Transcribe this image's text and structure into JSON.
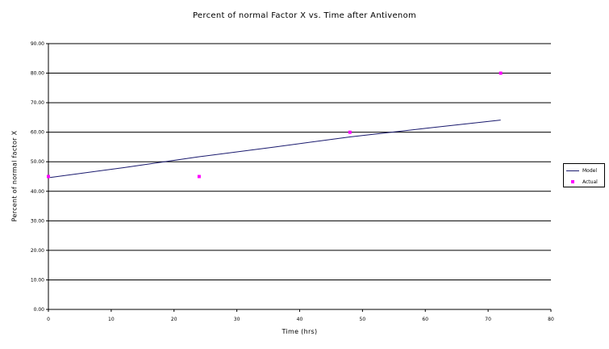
{
  "chart_data": {
    "type": "scatter",
    "title": "Percent of normal Factor X vs. Time after Antivenom",
    "xlabel": "Time (hrs)",
    "ylabel": "Percent of normal factor X",
    "xlim": [
      0,
      80
    ],
    "ylim": [
      0,
      90
    ],
    "x_ticks": [
      "0",
      "10",
      "20",
      "30",
      "40",
      "50",
      "60",
      "70",
      "80"
    ],
    "y_ticks": [
      "0.00",
      "10.00",
      "20.00",
      "30.00",
      "40.00",
      "50.00",
      "60.00",
      "70.00",
      "80.00",
      "90.00"
    ],
    "grid": "horizontal",
    "legend_placement": "right",
    "series": [
      {
        "name": "Model",
        "kind": "line",
        "color": "#1a1a6e",
        "x": [
          0,
          12,
          24,
          36,
          48,
          60,
          72
        ],
        "y": [
          44.6,
          48.0,
          51.7,
          55.0,
          58.4,
          61.3,
          64.1
        ]
      },
      {
        "name": "Actual",
        "kind": "marker",
        "color": "#ff00ff",
        "x": [
          0,
          24,
          48,
          72
        ],
        "y": [
          45.0,
          45.0,
          60.0,
          80.0
        ]
      }
    ]
  }
}
